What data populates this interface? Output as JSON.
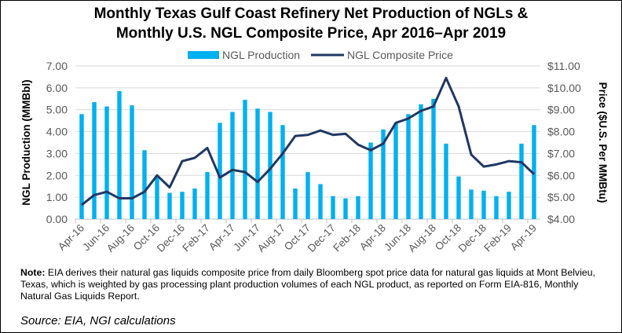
{
  "chart_data": {
    "type": "bar+line",
    "title": "Monthly Texas Gulf Coast Refinery Net Production of NGLs & Monthly U.S. NGL Composite Price, Apr 2016–Apr 2019",
    "title_lines": [
      "Monthly Texas Gulf Coast Refinery Net Production of NGLs &",
      "Monthly U.S. NGL Composite Price, Apr 2016–Apr 2019"
    ],
    "ylabel": "NGL Production (MMBbl)",
    "y2label": "Price ($U.S. Per MMBtu)",
    "ylim": [
      0,
      7
    ],
    "y2lim": [
      4,
      11
    ],
    "yticks": [
      "0.00",
      "1.00",
      "2.00",
      "3.00",
      "4.00",
      "5.00",
      "6.00",
      "7.00"
    ],
    "y2ticks": [
      "$4.00",
      "$5.00",
      "$6.00",
      "$7.00",
      "$8.00",
      "$9.00",
      "$10.00",
      "$11.00"
    ],
    "xtick_labels": [
      "Apr-16",
      "Jun-16",
      "Aug-16",
      "Oct-16",
      "Dec-16",
      "Feb-17",
      "Apr-17",
      "Jun-17",
      "Aug-17",
      "Oct-17",
      "Dec-17",
      "Feb-18",
      "Apr-18",
      "Jun-18",
      "Aug-18",
      "Oct-18",
      "Dec-18",
      "Feb-19",
      "Apr-19"
    ],
    "categories": [
      "Apr-16",
      "May-16",
      "Jun-16",
      "Jul-16",
      "Aug-16",
      "Sep-16",
      "Oct-16",
      "Nov-16",
      "Dec-16",
      "Jan-17",
      "Feb-17",
      "Mar-17",
      "Apr-17",
      "May-17",
      "Jun-17",
      "Jul-17",
      "Aug-17",
      "Sep-17",
      "Oct-17",
      "Nov-17",
      "Dec-17",
      "Jan-18",
      "Feb-18",
      "Mar-18",
      "Apr-18",
      "May-18",
      "Jun-18",
      "Jul-18",
      "Aug-18",
      "Sep-18",
      "Oct-18",
      "Nov-18",
      "Dec-18",
      "Jan-19",
      "Feb-19",
      "Mar-19",
      "Apr-19"
    ],
    "legend_position": "top",
    "grid": true,
    "series": [
      {
        "name": "NGL Production",
        "type": "bar",
        "axis": "left",
        "color": "#00b0f0",
        "values": [
          4.8,
          5.35,
          5.15,
          5.85,
          5.2,
          3.15,
          1.9,
          1.2,
          1.25,
          1.4,
          2.15,
          4.4,
          4.9,
          5.45,
          5.05,
          4.9,
          4.3,
          1.4,
          2.15,
          1.6,
          1.05,
          0.95,
          1.05,
          3.5,
          4.1,
          4.4,
          4.8,
          5.25,
          5.5,
          3.45,
          1.95,
          1.35,
          1.3,
          1.05,
          1.25,
          3.45,
          4.3
        ]
      },
      {
        "name": "NGL Composite Price",
        "type": "line",
        "axis": "right",
        "color": "#1f3864",
        "values": [
          4.65,
          5.1,
          5.25,
          4.95,
          4.95,
          5.25,
          6.0,
          5.45,
          6.65,
          6.8,
          7.25,
          5.9,
          6.25,
          6.15,
          5.7,
          6.3,
          7.0,
          7.8,
          7.85,
          8.05,
          7.85,
          7.9,
          7.4,
          7.15,
          7.45,
          8.4,
          8.6,
          8.95,
          9.15,
          10.45,
          9.15,
          6.95,
          6.4,
          6.5,
          6.65,
          6.6,
          6.05
        ]
      }
    ]
  },
  "note": {
    "label": "Note:",
    "text": " EIA derives their natural gas liquids composite price from daily Bloomberg spot price data for natural gas liquids at Mont Belvieu, Texas, which is weighted by gas processing plant production volumes of each NGL product, as reported on Form EIA-816, Monthly Natural Gas Liquids Report."
  },
  "source": "Source: EIA, NGI calculations"
}
